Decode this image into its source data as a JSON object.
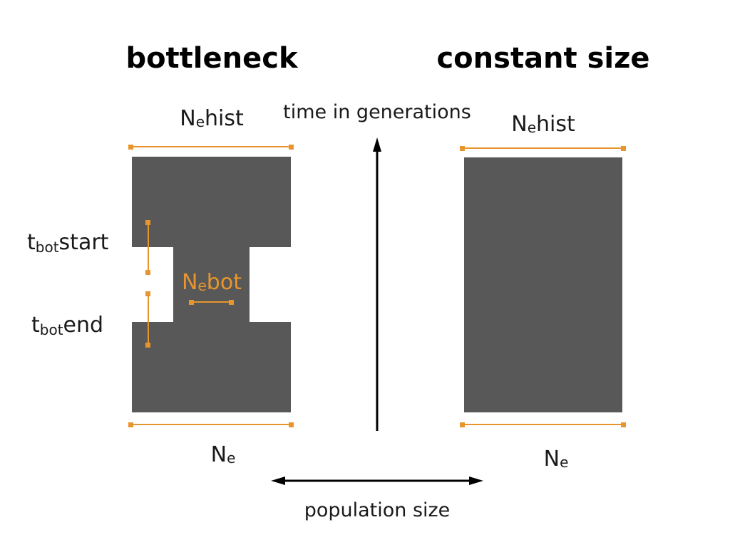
{
  "titles": {
    "bottleneck": "bottleneck",
    "constant": "constant size"
  },
  "labels": {
    "ne_hist_main": "N",
    "ne_hist_sub": "e",
    "ne_hist_suffix": "hist",
    "ne_main": "N",
    "ne_sub": "e",
    "ne_bot_main": "N",
    "ne_bot_sub": "e",
    "ne_bot_suffix": "bot",
    "t_start_main": "t",
    "t_start_sub": "bot",
    "t_start_suffix": "start",
    "t_end_main": "t",
    "t_end_sub": "bot",
    "t_end_suffix": "end",
    "time_axis": "time in generations",
    "pop_axis": "population size"
  },
  "colors": {
    "population_fill": "#585858",
    "annotation": "#e8952d",
    "axis": "#000000"
  }
}
